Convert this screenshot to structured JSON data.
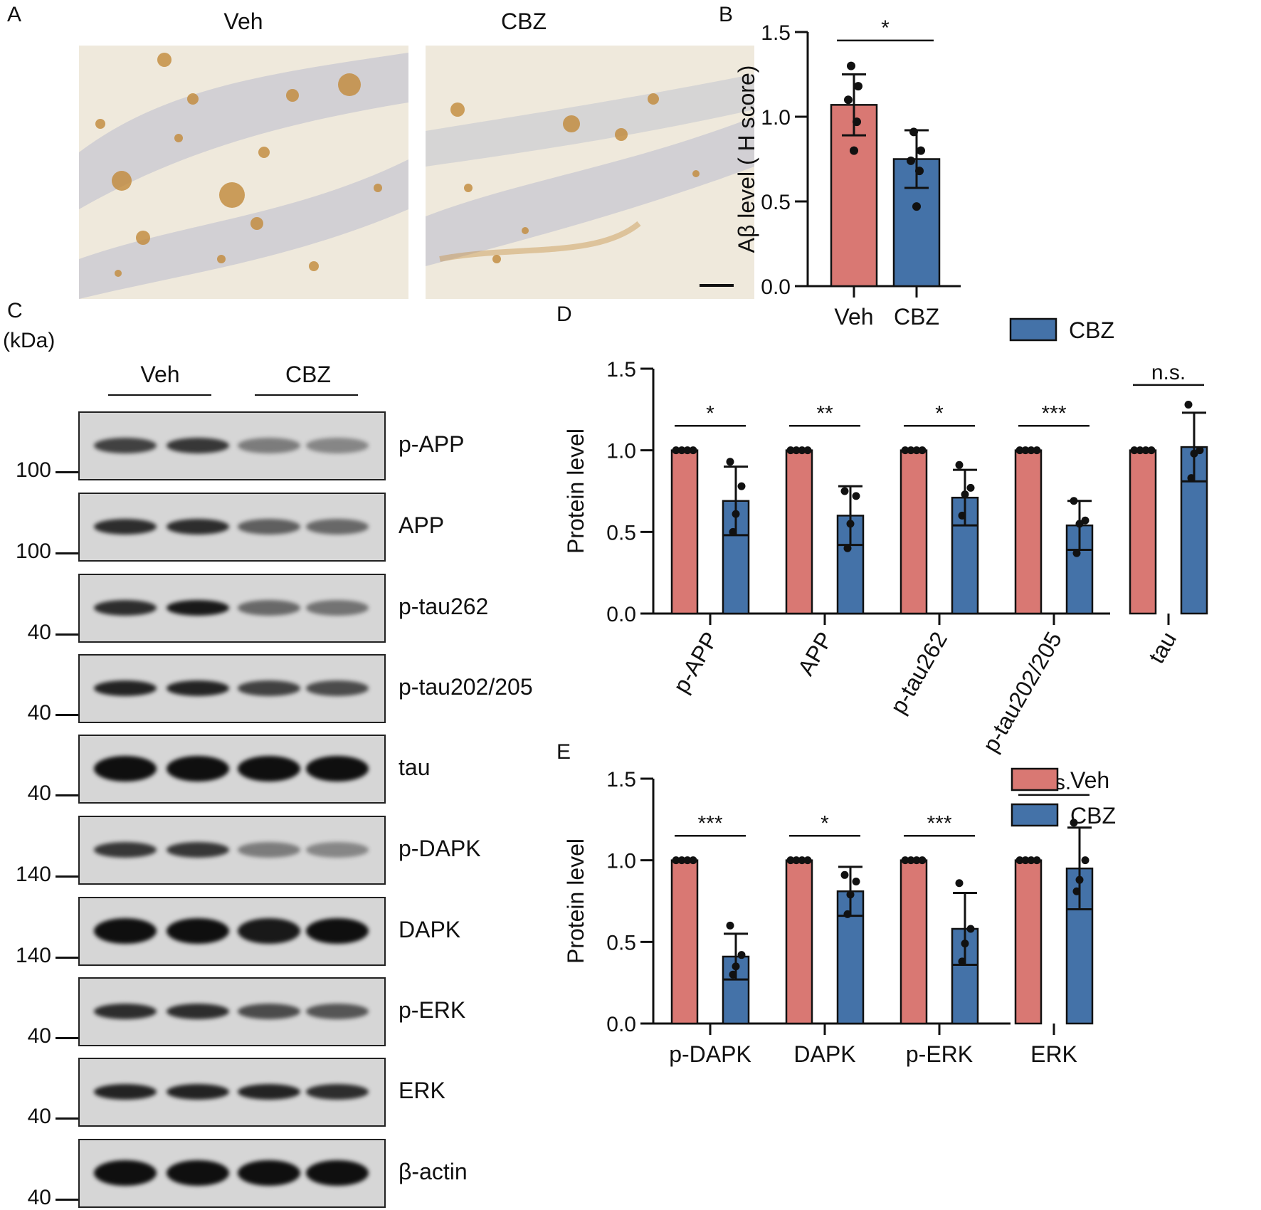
{
  "panels": {
    "A": "A",
    "B": "B",
    "C": "C",
    "D": "D",
    "E": "E"
  },
  "panel_a": {
    "left_label": "Veh",
    "right_label": "CBZ"
  },
  "panel_c": {
    "unit": "(kDa)",
    "group_labels": [
      "Veh",
      "CBZ"
    ],
    "blots": [
      {
        "label": "p-APP",
        "mw": "100"
      },
      {
        "label": "APP",
        "mw": "100"
      },
      {
        "label": "p-tau262",
        "mw": "40"
      },
      {
        "label": "p-tau202/205",
        "mw": "40"
      },
      {
        "label": "tau",
        "mw": "40"
      },
      {
        "label": "p-DAPK",
        "mw": "140"
      },
      {
        "label": "DAPK",
        "mw": "140"
      },
      {
        "label": "p-ERK",
        "mw": "40"
      },
      {
        "label": "ERK",
        "mw": "40"
      },
      {
        "label": "β-actin",
        "mw": "40"
      }
    ]
  },
  "chart_data": [
    {
      "panel": "B",
      "type": "bar",
      "categories": [
        "Veh",
        "CBZ"
      ],
      "values": [
        1.07,
        0.75
      ],
      "error": [
        0.18,
        0.17
      ],
      "points": [
        [
          1.3,
          1.18,
          1.1,
          0.97,
          0.8
        ],
        [
          0.91,
          0.8,
          0.74,
          0.68,
          0.47
        ]
      ],
      "colors": [
        "#d97873",
        "#4472a8"
      ],
      "ylabel": "Aβ level ( H score)",
      "ylim": [
        0,
        1.5
      ],
      "yticks": [
        "0.0",
        "0.5",
        "1.0",
        "1.5"
      ],
      "significance": [
        "*"
      ]
    },
    {
      "panel": "D",
      "type": "bar",
      "categories": [
        "p-APP",
        "APP",
        "p-tau262",
        "p-tau202/205",
        "tau"
      ],
      "series": [
        {
          "name": "Veh",
          "color": "#d97873",
          "values": [
            1.0,
            1.0,
            1.0,
            1.0,
            1.0
          ],
          "error": [
            0,
            0,
            0,
            0,
            0
          ],
          "points": [
            [
              1,
              1,
              1,
              1
            ],
            [
              1,
              1,
              1,
              1
            ],
            [
              1,
              1,
              1,
              1
            ],
            [
              1,
              1,
              1,
              1
            ],
            [
              1,
              1,
              1,
              1
            ]
          ]
        },
        {
          "name": "CBZ",
          "color": "#4472a8",
          "values": [
            0.69,
            0.6,
            0.71,
            0.54,
            1.02
          ],
          "error": [
            0.21,
            0.18,
            0.17,
            0.15,
            0.21
          ],
          "points": [
            [
              0.93,
              0.78,
              0.61,
              0.5
            ],
            [
              0.75,
              0.72,
              0.55,
              0.4
            ],
            [
              0.91,
              0.77,
              0.73,
              0.6
            ],
            [
              0.69,
              0.57,
              0.55,
              0.37
            ],
            [
              1.28,
              1.0,
              0.98,
              0.83
            ]
          ]
        }
      ],
      "ylabel": "Protein level",
      "ylim": [
        0,
        1.5
      ],
      "yticks": [
        "0.0",
        "0.5",
        "1.0",
        "1.5"
      ],
      "significance": [
        "*",
        "**",
        "*",
        "***",
        "n.s."
      ],
      "legend": "top-right"
    },
    {
      "panel": "E",
      "type": "bar",
      "categories": [
        "p-DAPK",
        "DAPK",
        "p-ERK",
        "ERK"
      ],
      "series": [
        {
          "name": "Veh",
          "color": "#d97873",
          "values": [
            1.0,
            1.0,
            1.0,
            1.0
          ],
          "error": [
            0,
            0,
            0,
            0
          ],
          "points": [
            [
              1,
              1,
              1,
              1
            ],
            [
              1,
              1,
              1,
              1
            ],
            [
              1,
              1,
              1,
              1
            ],
            [
              1,
              1,
              1,
              1
            ]
          ]
        },
        {
          "name": "CBZ",
          "color": "#4472a8",
          "values": [
            0.41,
            0.81,
            0.58,
            0.95
          ],
          "error": [
            0.14,
            0.15,
            0.22,
            0.25
          ],
          "points": [
            [
              0.6,
              0.42,
              0.35,
              0.3
            ],
            [
              0.91,
              0.87,
              0.79,
              0.67
            ],
            [
              0.86,
              0.58,
              0.49,
              0.38
            ],
            [
              1.23,
              1.0,
              0.88,
              0.81
            ]
          ]
        }
      ],
      "ylabel": "Protein level",
      "ylim": [
        0,
        1.5
      ],
      "yticks": [
        "0.0",
        "0.5",
        "1.0",
        "1.5"
      ],
      "significance": [
        "***",
        "*",
        "***",
        "n.s."
      ],
      "legend": "top-right"
    }
  ]
}
